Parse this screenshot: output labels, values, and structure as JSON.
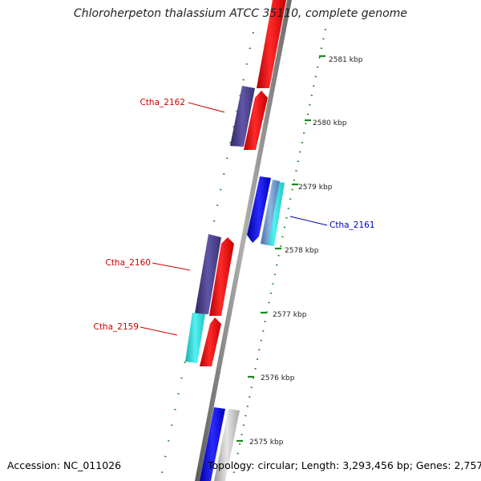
{
  "title": "Chloroherpeton thalassium ATCC 35110, complete genome",
  "footer": {
    "accession": "Accession: NC_011026",
    "summary": "Topology: circular; Length: 3,293,456 bp; Genes: 2,757"
  },
  "colors": {
    "forward_cds": "#ff0000",
    "reverse_cds": "#0000ff",
    "purple_feature": "#4b3f8c",
    "cyan_feature": "#33e0e0",
    "gray_feature": "#b8b8b8",
    "steelblue_feature": "#5b8fc9",
    "backbone": "#888888",
    "ticks": "#1a8a1a",
    "label_red": "#cc0000",
    "label_blue": "#0000bb"
  },
  "ruler_labels": [
    "2581 kbp",
    "2580 kbp",
    "2579 kbp",
    "2578 kbp",
    "2577 kbp",
    "2576 kbp",
    "2575 kbp"
  ],
  "gene_labels": [
    "Ctha_2162",
    "Ctha_2161",
    "Ctha_2160",
    "Ctha_2159"
  ]
}
